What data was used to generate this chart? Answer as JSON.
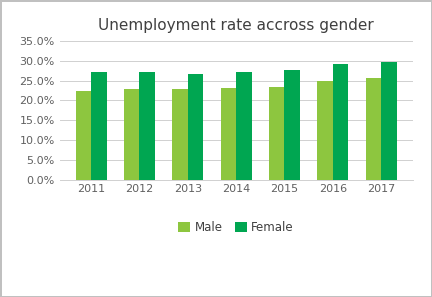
{
  "title": "Unemployment rate accross gender",
  "years": [
    2011,
    2012,
    2013,
    2014,
    2015,
    2016,
    2017
  ],
  "male": [
    0.225,
    0.23,
    0.23,
    0.232,
    0.234,
    0.248,
    0.256
  ],
  "female": [
    0.271,
    0.271,
    0.266,
    0.271,
    0.276,
    0.292,
    0.296
  ],
  "male_color": "#8DC63F",
  "female_color": "#00A651",
  "ylim": [
    0,
    0.35
  ],
  "yticks": [
    0.0,
    0.05,
    0.1,
    0.15,
    0.2,
    0.25,
    0.3,
    0.35
  ],
  "legend_labels": [
    "Male",
    "Female"
  ],
  "bar_width": 0.32,
  "background_color": "#ffffff",
  "grid_color": "#d0d0d0",
  "border_color": "#c0c0c0",
  "title_fontsize": 11,
  "tick_fontsize": 8
}
